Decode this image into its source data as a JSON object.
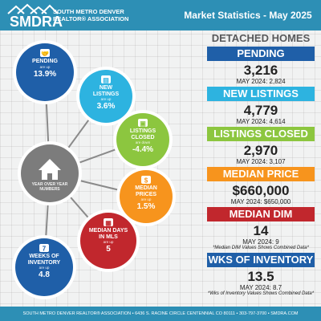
{
  "header": {
    "logo_text": "SMDRA",
    "association_name_line1": "SOUTH METRO DENVER",
    "association_name_line2": "REALTOR® ASSOCIATION",
    "title": "Market Statistics - May 2025",
    "colors": {
      "header": "#2d8fb5"
    }
  },
  "diagram": {
    "hub": {
      "label_line1": "YEAR OVER YEAR",
      "label_line2": "NUMBERS",
      "icon": "house-icon",
      "color": "#7c7c7c"
    },
    "circles": [
      {
        "id": "pending",
        "name_lines": [
          "PENDING"
        ],
        "direction": "are up",
        "value": "13.9%",
        "color": "#1f5fa8",
        "icon": "handshake-icon"
      },
      {
        "id": "new-listings",
        "name_lines": [
          "NEW",
          "LISTINGS"
        ],
        "direction": "are up",
        "value": "3.6%",
        "color": "#2db3e0",
        "icon": "listing-sign-icon"
      },
      {
        "id": "listings-closed",
        "name_lines": [
          "LISTINGS",
          "CLOSED"
        ],
        "direction": "are down",
        "value": "-4.4%",
        "color": "#8cc63f",
        "icon": "sold-sign-icon"
      },
      {
        "id": "median-prices",
        "name_lines": [
          "MEDIAN",
          "PRICES"
        ],
        "direction": "are up",
        "value": "1.5%",
        "color": "#f7941d",
        "icon": "money-bag-icon"
      },
      {
        "id": "median-days",
        "name_lines": [
          "MEDIAN DAYS",
          "IN MLS"
        ],
        "direction": "are up",
        "value": "5",
        "color": "#c1272d",
        "icon": "calendar-icon"
      },
      {
        "id": "weeks-inventory",
        "name_lines": [
          "WEEKS OF",
          "INVENTORY"
        ],
        "direction": "are up",
        "value": "4.8",
        "color": "#1f5fa8",
        "icon": "calendar-7-icon"
      }
    ]
  },
  "stats": {
    "section_title": "DETACHED HOMES",
    "items": [
      {
        "label": "PENDING",
        "value": "3,216",
        "prev": "MAY 2024: 2,824",
        "note": "",
        "color": "#1f5fa8"
      },
      {
        "label": "NEW LISTINGS",
        "value": "4,779",
        "prev": "MAY 2024: 4,614",
        "note": "",
        "color": "#2db3e0"
      },
      {
        "label": "LISTINGS CLOSED",
        "value": "2,970",
        "prev": "MAY 2024: 3,107",
        "note": "",
        "color": "#8cc63f"
      },
      {
        "label": "MEDIAN PRICE",
        "value": "$660,000",
        "prev": "MAY 2024: $650,000",
        "note": "",
        "color": "#f7941d"
      },
      {
        "label": "MEDIAN DIM",
        "value": "14",
        "prev": "MAY 2024: 9",
        "note": "*Median DIM Values Shows Combined Data*",
        "color": "#c1272d"
      },
      {
        "label": "WKS OF INVENTORY",
        "value": "13.5",
        "prev": "MAY 2024: 8.7",
        "note": "*Wks of Inventory Values Shows Combined Data*",
        "color": "#1f5fa8"
      }
    ]
  },
  "footer": {
    "text": "SOUTH METRO DENVER REALTOR® ASSOCIATION • 6436 S. RACINE CIRCLE CENTENNIAL CO 80111 • 303-797-3700 • SMDRA.COM"
  }
}
